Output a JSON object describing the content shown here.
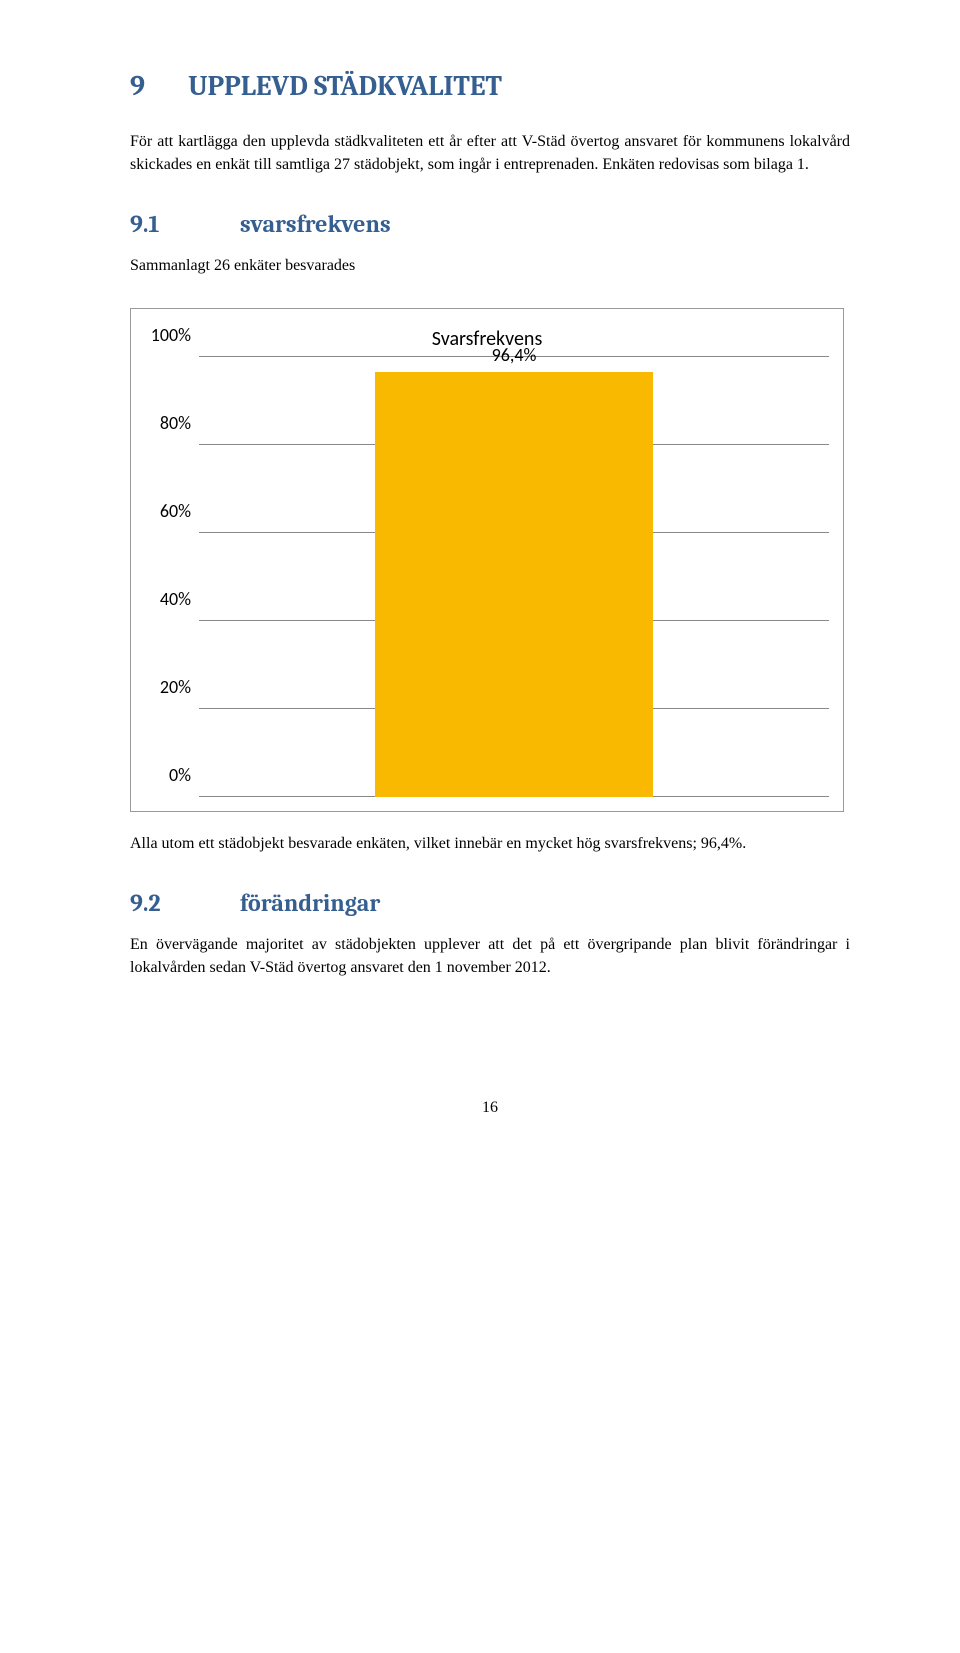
{
  "section": {
    "number": "9",
    "title": "UPPLEVD STÄDKVALITET",
    "intro": "För att kartlägga den upplevda städkvaliteten ett år efter att V-Städ övertog ansvaret för kommunens lokalvård skickades en enkät till samtliga 27 städobjekt, som ingår i entreprenaden. Enkäten redovisas som bilaga 1."
  },
  "sub1": {
    "number": "9.1",
    "title": "svarsfrekvens",
    "text": "Sammanlagt 26 enkäter besvarades"
  },
  "chart": {
    "type": "bar",
    "title": "Svarsfrekvens",
    "value": 96.4,
    "value_label": "96,4%",
    "bar_color": "#f9b900",
    "gridline_color": "#888888",
    "background_color": "#ffffff",
    "y_ticks": [
      "0%",
      "20%",
      "40%",
      "60%",
      "80%",
      "100%"
    ],
    "y_tick_positions_pct": [
      0,
      20,
      40,
      60,
      80,
      100
    ],
    "ylim": [
      0,
      100
    ],
    "bar_left_pct": 28,
    "bar_width_pct": 44,
    "title_fontsize": 20,
    "label_fontsize": 18
  },
  "chart_note": "Alla utom ett städobjekt besvarade enkäten, vilket innebär en mycket hög svarsfrekvens; 96,4%.",
  "sub2": {
    "number": "9.2",
    "title": "förändringar",
    "text": "En övervägande majoritet av städobjekten upplever att det på ett övergripande plan blivit förändringar i lokalvården sedan V-Städ övertog ansvaret den 1 november 2012."
  },
  "page_number": "16"
}
